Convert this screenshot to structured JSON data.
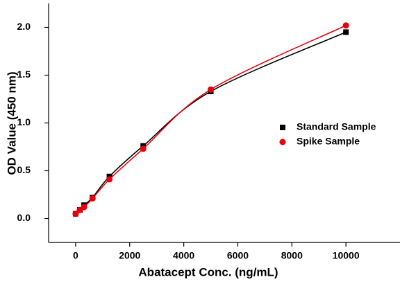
{
  "chart_data": {
    "type": "scatter-fit",
    "x_label": "Abatacept Conc. (ng/mL)",
    "y_label": "OD Value (450 nm)",
    "xlim": [
      -1000,
      12000
    ],
    "ylim": [
      -0.25,
      2.25
    ],
    "xticks": [
      0,
      2000,
      4000,
      6000,
      8000,
      10000
    ],
    "yticks": [
      {
        "value": 0,
        "label": "0.0"
      },
      0.5,
      {
        "value": 1,
        "label": "1.0"
      },
      1.5,
      {
        "value": 2,
        "label": "2.0"
      }
    ],
    "x": [
      0,
      156.25,
      312.5,
      625,
      1250,
      2500,
      5000,
      10000
    ],
    "legend": "right",
    "series": [
      {
        "name": "Standard Sample",
        "color": "#000000",
        "marker": "square",
        "values": [
          0.05,
          0.09,
          0.14,
          0.22,
          0.44,
          0.76,
          1.33,
          1.95
        ]
      },
      {
        "name": "Spike Sample",
        "color": "#e8000b",
        "marker": "circle",
        "values": [
          0.05,
          0.09,
          0.12,
          0.21,
          0.41,
          0.73,
          1.35,
          2.02
        ]
      }
    ]
  }
}
